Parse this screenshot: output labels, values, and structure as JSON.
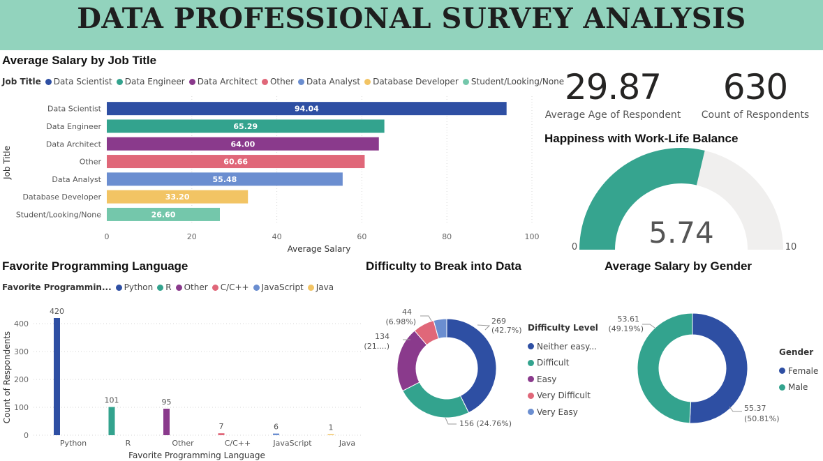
{
  "page": {
    "title": "DATA PROFESSIONAL SURVEY ANALYSIS"
  },
  "colors": {
    "banner": "#92d3bd",
    "data_scientist": "#2e4fa3",
    "data_engineer": "#33a38e",
    "data_architect": "#8a3a8c",
    "other": "#e06779",
    "data_analyst": "#6b8ed0",
    "database_developer": "#f2c464",
    "student": "#74c7ab",
    "gauge_fill": "#36a48f",
    "gauge_track": "#f0efee"
  },
  "salary_by_job": {
    "title": "Average Salary by Job Title",
    "legend_title": "Job Title",
    "legend": [
      {
        "label": "Data Scientist",
        "color": "#2e4fa3"
      },
      {
        "label": "Data Engineer",
        "color": "#33a38e"
      },
      {
        "label": "Data Architect",
        "color": "#8a3a8c"
      },
      {
        "label": "Other",
        "color": "#e06779"
      },
      {
        "label": "Data Analyst",
        "color": "#6b8ed0"
      },
      {
        "label": "Database Developer",
        "color": "#f2c464"
      },
      {
        "label": "Student/Looking/None",
        "color": "#74c7ab"
      }
    ]
  },
  "kpis": {
    "avg_age": {
      "value": "29.87",
      "label": "Average Age of Respondent"
    },
    "count": {
      "value": "630",
      "label": "Count of Respondents"
    }
  },
  "happiness": {
    "title": "Happiness with Work-Life Balance",
    "value": 5.74,
    "value_label": "5.74",
    "min": 0,
    "max": 10,
    "min_label": "0",
    "max_label": "10"
  },
  "languages": {
    "title": "Favorite Programming Language",
    "legend_title": "Favorite Programmin...",
    "legend": [
      {
        "label": "Python",
        "color": "#2e4fa3"
      },
      {
        "label": "R",
        "color": "#33a38e"
      },
      {
        "label": "Other",
        "color": "#8a3a8c"
      },
      {
        "label": "C/C++",
        "color": "#e06779"
      },
      {
        "label": "JavaScript",
        "color": "#6b8ed0"
      },
      {
        "label": "Java",
        "color": "#f2c464"
      }
    ]
  },
  "difficulty": {
    "title": "Difficulty to Break into Data",
    "legend_title": "Difficulty Level",
    "legend": [
      {
        "label": "Neither easy...",
        "color": "#2e4fa3"
      },
      {
        "label": "Difficult",
        "color": "#33a38e"
      },
      {
        "label": "Easy",
        "color": "#8a3a8c"
      },
      {
        "label": "Very Difficult",
        "color": "#e06779"
      },
      {
        "label": "Very Easy",
        "color": "#6b8ed0"
      }
    ]
  },
  "gender": {
    "title": "Average Salary by Gender",
    "legend_title": "Gender",
    "legend": [
      {
        "label": "Female",
        "color": "#2e4fa3"
      },
      {
        "label": "Male",
        "color": "#33a38e"
      }
    ]
  },
  "chart_data": [
    {
      "id": "salary_by_job",
      "type": "bar",
      "orientation": "horizontal",
      "title": "Average Salary by Job Title",
      "xlabel": "Average Salary",
      "ylabel": "Job Title",
      "categories": [
        "Data Scientist",
        "Data Engineer",
        "Data Architect",
        "Other",
        "Data Analyst",
        "Database Developer",
        "Student/Looking/None"
      ],
      "values": [
        94.04,
        65.29,
        64.0,
        60.66,
        55.48,
        33.2,
        26.6
      ],
      "value_labels": [
        "94.04",
        "65.29",
        "64.00",
        "60.66",
        "55.48",
        "33.20",
        "26.60"
      ],
      "colors": [
        "#2e4fa3",
        "#33a38e",
        "#8a3a8c",
        "#e06779",
        "#6b8ed0",
        "#f2c464",
        "#74c7ab"
      ],
      "xlim": [
        0,
        100
      ],
      "xticks": [
        0,
        20,
        40,
        60,
        80,
        100
      ],
      "grid": true
    },
    {
      "id": "languages",
      "type": "bar",
      "orientation": "vertical",
      "title": "Favorite Programming Language",
      "xlabel": "Favorite Programming Language",
      "ylabel": "Count of Respondents",
      "categories": [
        "Python",
        "R",
        "Other",
        "C/C++",
        "JavaScript",
        "Java"
      ],
      "values": [
        420,
        101,
        95,
        7,
        6,
        1
      ],
      "value_labels": [
        "420",
        "101",
        "95",
        "7",
        "6",
        "1"
      ],
      "colors": [
        "#2e4fa3",
        "#33a38e",
        "#8a3a8c",
        "#e06779",
        "#6b8ed0",
        "#f2c464"
      ],
      "ylim": [
        0,
        440
      ],
      "yticks": [
        0,
        100,
        200,
        300,
        400
      ],
      "grid": true
    },
    {
      "id": "difficulty",
      "type": "pie",
      "donut": true,
      "title": "Difficulty to Break into Data",
      "categories": [
        "Neither easy...",
        "Difficult",
        "Easy",
        "Very Difficult",
        "Very Easy"
      ],
      "values": [
        269,
        156,
        134,
        44,
        27
      ],
      "value_labels": [
        "269",
        "156 (24.76%)",
        "134",
        "44",
        ""
      ],
      "pct_labels": [
        "(42.7%)",
        "",
        "(21....)",
        "(6.98%)",
        ""
      ],
      "colors": [
        "#2e4fa3",
        "#33a38e",
        "#8a3a8c",
        "#e06779",
        "#6b8ed0"
      ]
    },
    {
      "id": "gender",
      "type": "pie",
      "donut": true,
      "title": "Average Salary by Gender",
      "categories": [
        "Female",
        "Male"
      ],
      "values": [
        55.37,
        53.61
      ],
      "value_labels": [
        "55.37",
        "53.61"
      ],
      "pct_labels": [
        "(50.81%)",
        "(49.19%)"
      ],
      "colors": [
        "#2e4fa3",
        "#33a38e"
      ]
    }
  ]
}
